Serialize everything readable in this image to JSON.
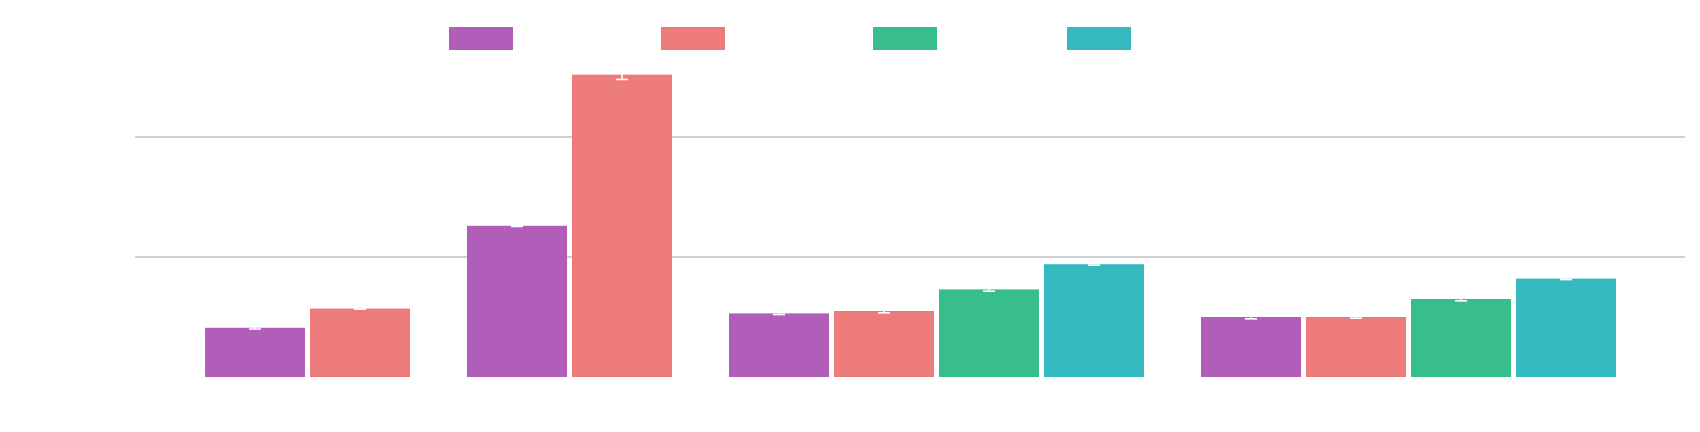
{
  "chart_data": {
    "type": "bar",
    "title": "",
    "xlabel": "",
    "ylabel": "",
    "ylim": [
      0,
      2.5
    ],
    "grid": true,
    "gridlines": [
      1,
      2
    ],
    "legend_placement": "top-center",
    "categories": [
      "",
      "",
      "",
      ""
    ],
    "series": [
      {
        "color": "#b05eba",
        "values": [
          0.41,
          1.26,
          0.53,
          0.5
        ],
        "errors": [
          0.01,
          0.005,
          0.01,
          0.015
        ]
      },
      {
        "color": "#ec7b7a",
        "values": [
          0.57,
          2.52,
          0.55,
          0.5
        ],
        "errors": [
          0.005,
          0.04,
          0.015,
          0.01
        ]
      },
      {
        "color": "#37be8b",
        "values": [
          null,
          null,
          0.73,
          0.65
        ],
        "errors": [
          null,
          null,
          0.015,
          0.015
        ]
      },
      {
        "color": "#35b9c0",
        "values": [
          null,
          null,
          0.94,
          0.82
        ],
        "errors": [
          null,
          null,
          0.008,
          0.008
        ]
      }
    ]
  }
}
